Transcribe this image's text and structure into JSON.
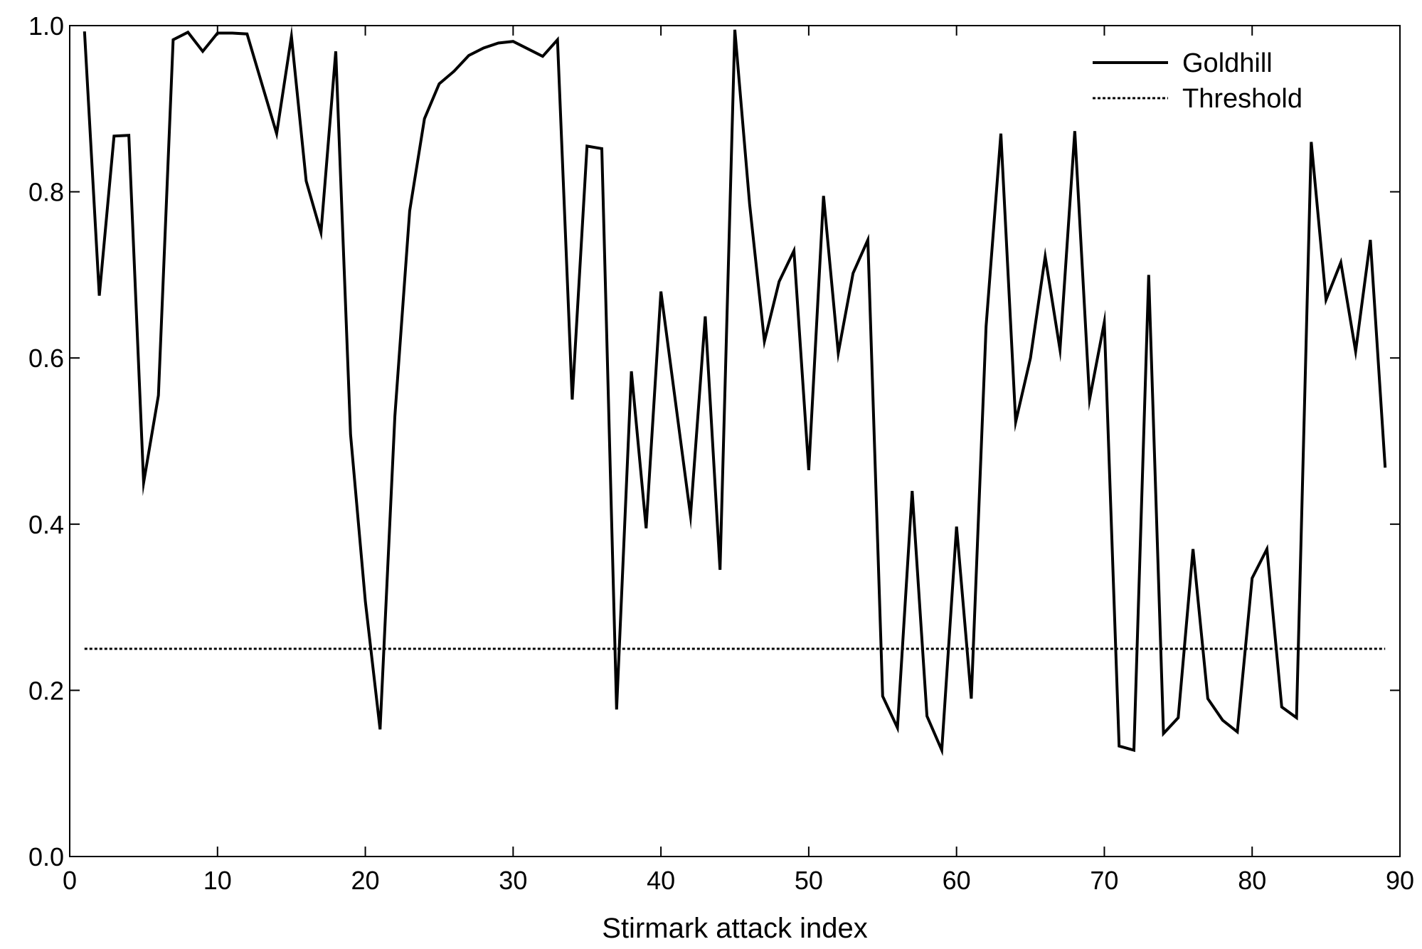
{
  "chart_data": {
    "type": "line",
    "title": "",
    "xlabel": "Stirmark attack index",
    "ylabel": "",
    "xlim": [
      0,
      90
    ],
    "ylim": [
      0.0,
      1.0
    ],
    "x_ticks": [
      0,
      10,
      20,
      30,
      40,
      50,
      60,
      70,
      80,
      90
    ],
    "x_tick_labels": [
      "0",
      "10",
      "20",
      "30",
      "40",
      "50",
      "60",
      "70",
      "80",
      "90"
    ],
    "y_ticks": [
      0.0,
      0.2,
      0.4,
      0.6,
      0.8,
      1.0
    ],
    "y_tick_labels": [
      "0.0",
      "0.2",
      "0.4",
      "0.6",
      "0.8",
      "1.0"
    ],
    "grid": false,
    "legend_position": "top-right",
    "series": [
      {
        "name": "Goldhill",
        "style": "solid",
        "color": "#000000",
        "x": [
          1,
          2,
          3,
          4,
          5,
          6,
          7,
          8,
          9,
          10,
          11,
          12,
          13,
          14,
          15,
          16,
          17,
          18,
          19,
          20,
          21,
          22,
          23,
          24,
          25,
          26,
          27,
          28,
          29,
          30,
          31,
          32,
          33,
          34,
          35,
          36,
          37,
          38,
          39,
          40,
          41,
          42,
          43,
          44,
          45,
          46,
          47,
          48,
          49,
          50,
          51,
          52,
          53,
          54,
          55,
          56,
          57,
          58,
          59,
          60,
          61,
          62,
          63,
          64,
          65,
          66,
          67,
          68,
          69,
          70,
          71,
          72,
          73,
          74,
          75,
          76,
          77,
          78,
          79,
          80,
          81,
          82,
          83,
          84,
          85,
          86,
          87,
          88,
          89
        ],
        "y": [
          0.993,
          0.675,
          0.867,
          0.868,
          0.45,
          0.555,
          0.983,
          0.992,
          0.969,
          0.991,
          0.991,
          0.99,
          0.93,
          0.87,
          0.987,
          0.813,
          0.751,
          0.969,
          0.508,
          0.307,
          0.153,
          0.53,
          0.777,
          0.888,
          0.93,
          0.945,
          0.964,
          0.973,
          0.979,
          0.981,
          0.972,
          0.963,
          0.983,
          0.55,
          0.855,
          0.852,
          0.177,
          0.584,
          0.395,
          0.68,
          0.545,
          0.41,
          0.65,
          0.345,
          0.995,
          0.785,
          0.62,
          0.692,
          0.729,
          0.465,
          0.795,
          0.606,
          0.702,
          0.742,
          0.193,
          0.155,
          0.44,
          0.169,
          0.128,
          0.397,
          0.19,
          0.638,
          0.87,
          0.523,
          0.6,
          0.722,
          0.61,
          0.873,
          0.55,
          0.643,
          0.133,
          0.128,
          0.7,
          0.148,
          0.167,
          0.37,
          0.19,
          0.164,
          0.15,
          0.335,
          0.37,
          0.18,
          0.167,
          0.86,
          0.67,
          0.715,
          0.608,
          0.742,
          0.468
        ]
      },
      {
        "name": "Threshold",
        "style": "dotted",
        "color": "#000000",
        "x": [
          1,
          89
        ],
        "y": [
          0.25,
          0.25
        ]
      }
    ]
  }
}
